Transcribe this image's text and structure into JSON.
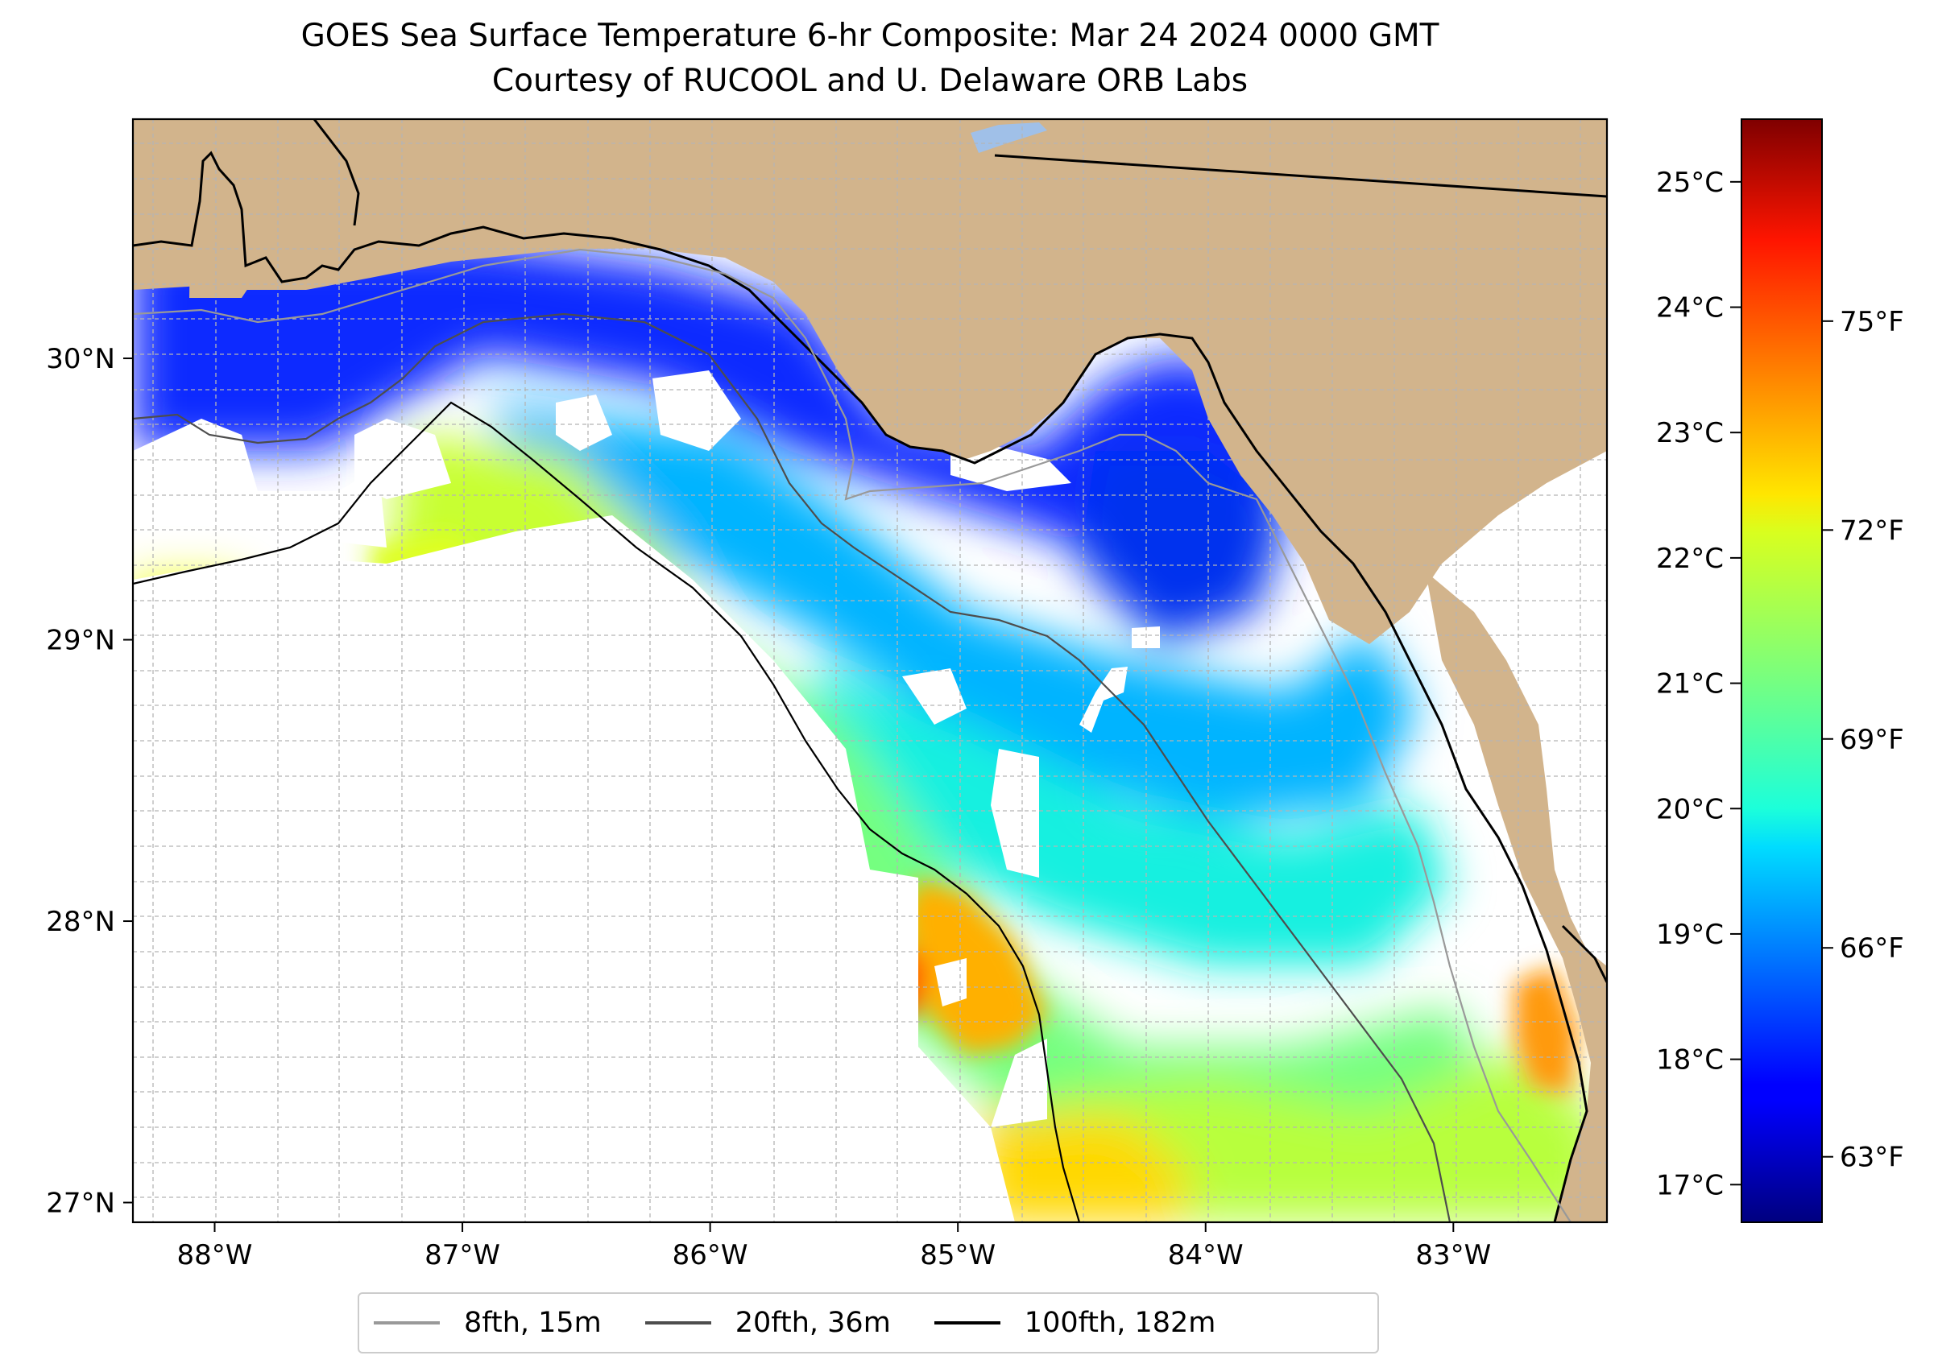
{
  "title": {
    "line1": "GOES Sea Surface Temperature 6-hr Composite: Mar 24 2024 0000 GMT",
    "line2": "Courtesy of RUCOOL and U. Delaware ORB Labs"
  },
  "map": {
    "lon_range": [
      -88.33,
      -82.38
    ],
    "lat_range": [
      26.93,
      30.85
    ],
    "lon_ticks": [
      {
        "value": -88,
        "label": "88°W"
      },
      {
        "value": -87,
        "label": "87°W"
      },
      {
        "value": -86,
        "label": "86°W"
      },
      {
        "value": -85,
        "label": "85°W"
      },
      {
        "value": -84,
        "label": "84°W"
      },
      {
        "value": -83,
        "label": "83°W"
      }
    ],
    "lat_ticks": [
      {
        "value": 30,
        "label": "30°N"
      },
      {
        "value": 29,
        "label": "29°N"
      },
      {
        "value": 28,
        "label": "28°N"
      },
      {
        "value": 27,
        "label": "27°N"
      }
    ],
    "gridlines": true,
    "colors": {
      "land": "#d2b48c",
      "no_data": "#ffffff",
      "grid": "#b0b0b0"
    }
  },
  "colorbar": {
    "colormap": "jet",
    "celsius_range": [
      16.7,
      25.5
    ],
    "celsius_ticks": [
      {
        "value": 25,
        "label": "25°C"
      },
      {
        "value": 24,
        "label": "24°C"
      },
      {
        "value": 23,
        "label": "23°C"
      },
      {
        "value": 22,
        "label": "22°C"
      },
      {
        "value": 21,
        "label": "21°C"
      },
      {
        "value": 20,
        "label": "20°C"
      },
      {
        "value": 19,
        "label": "19°C"
      },
      {
        "value": 18,
        "label": "18°C"
      },
      {
        "value": 17,
        "label": "17°C"
      }
    ],
    "fahrenheit_ticks": [
      {
        "value": 75,
        "label": "75°F"
      },
      {
        "value": 72,
        "label": "72°F"
      },
      {
        "value": 69,
        "label": "69°F"
      },
      {
        "value": 66,
        "label": "66°F"
      },
      {
        "value": 63,
        "label": "63°F"
      }
    ]
  },
  "legend": {
    "items": [
      {
        "label": "8fth, 15m",
        "color": "#999999"
      },
      {
        "label": "20fth, 36m",
        "color": "#4d4d4d"
      },
      {
        "label": "100fth, 182m",
        "color": "#000000"
      }
    ]
  }
}
